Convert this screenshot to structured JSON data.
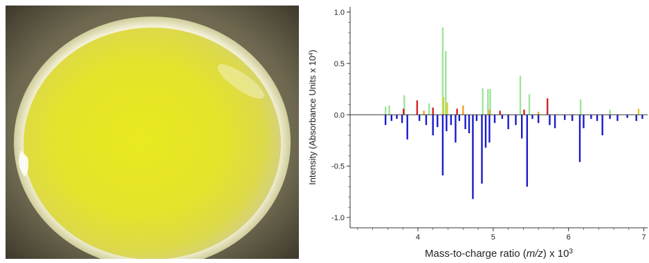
{
  "photo": {
    "subject": "yellow-colony-photo"
  },
  "chart_data": {
    "type": "bar",
    "ylabel": "Intensity (Absorbance Units x 10",
    "ylabel_sup": "4",
    "ylabel_close": ")",
    "xlabel_prefix": "Mass-to-charge ratio (",
    "xlabel_italic": "m/z",
    "xlabel_suffix": ") x 10",
    "xlabel_sup": "3",
    "xlim": [
      3.1,
      7.05
    ],
    "ylim": [
      -1.1,
      1.05
    ],
    "xticks": [
      "4",
      "5",
      "6",
      "7"
    ],
    "xtick_values": [
      4,
      5,
      6,
      7
    ],
    "yticks": [
      "1.0",
      "0.5",
      "0.0",
      "-0.5",
      "-1.0"
    ],
    "ytick_values": [
      1.0,
      0.5,
      0.0,
      -0.5,
      -1.0
    ],
    "grid": false,
    "colors": {
      "green": "#9ee39a",
      "red": "#d42020",
      "orange": "#f2a020",
      "yellow": "#d8d030",
      "blue": "#1a1acc",
      "zero_line": "#333333"
    },
    "series": [
      {
        "color_key": "green",
        "x": [
          3.57,
          3.62,
          3.82,
          4.15,
          4.33,
          4.37,
          4.86,
          4.93,
          4.96,
          5.36,
          5.48,
          6.16,
          6.55
        ],
        "values": [
          0.08,
          0.09,
          0.19,
          0.11,
          0.85,
          0.62,
          0.26,
          0.25,
          0.25,
          0.38,
          0.2,
          0.15,
          0.05
        ]
      },
      {
        "color_key": "red",
        "x": [
          3.81,
          3.99,
          4.2,
          4.52,
          5.09,
          5.41,
          5.72
        ],
        "values": [
          0.06,
          0.14,
          0.07,
          0.06,
          0.04,
          0.05,
          0.16
        ]
      },
      {
        "color_key": "orange",
        "x": [
          4.08,
          4.6,
          4.95,
          5.6
        ],
        "values": [
          0.04,
          0.09,
          0.05,
          0.03
        ]
      },
      {
        "color_key": "yellow",
        "x": [
          4.34,
          4.39,
          6.93
        ],
        "values": [
          0.17,
          0.12,
          0.06
        ]
      },
      {
        "color_key": "blue",
        "x": [
          3.57,
          3.65,
          3.72,
          3.79,
          3.86,
          4.02,
          4.11,
          4.2,
          4.26,
          4.33,
          4.38,
          4.44,
          4.5,
          4.55,
          4.63,
          4.68,
          4.73,
          4.78,
          4.85,
          4.9,
          4.95,
          5.02,
          5.12,
          5.2,
          5.3,
          5.38,
          5.45,
          5.52,
          5.6,
          5.75,
          5.82,
          5.95,
          6.05,
          6.15,
          6.2,
          6.3,
          6.38,
          6.45,
          6.55,
          6.65,
          6.78,
          6.9,
          6.98
        ],
        "values": [
          -0.1,
          -0.06,
          -0.04,
          -0.08,
          -0.24,
          -0.06,
          -0.1,
          -0.2,
          -0.12,
          -0.59,
          -0.16,
          -0.1,
          -0.27,
          -0.06,
          -0.14,
          -0.18,
          -0.82,
          -0.06,
          -0.67,
          -0.32,
          -0.27,
          -0.08,
          -0.04,
          -0.14,
          -0.1,
          -0.23,
          -0.7,
          -0.04,
          -0.08,
          -0.1,
          -0.13,
          -0.05,
          -0.06,
          -0.46,
          -0.13,
          -0.04,
          -0.06,
          -0.2,
          -0.04,
          -0.06,
          -0.03,
          -0.06,
          -0.04
        ]
      }
    ]
  }
}
